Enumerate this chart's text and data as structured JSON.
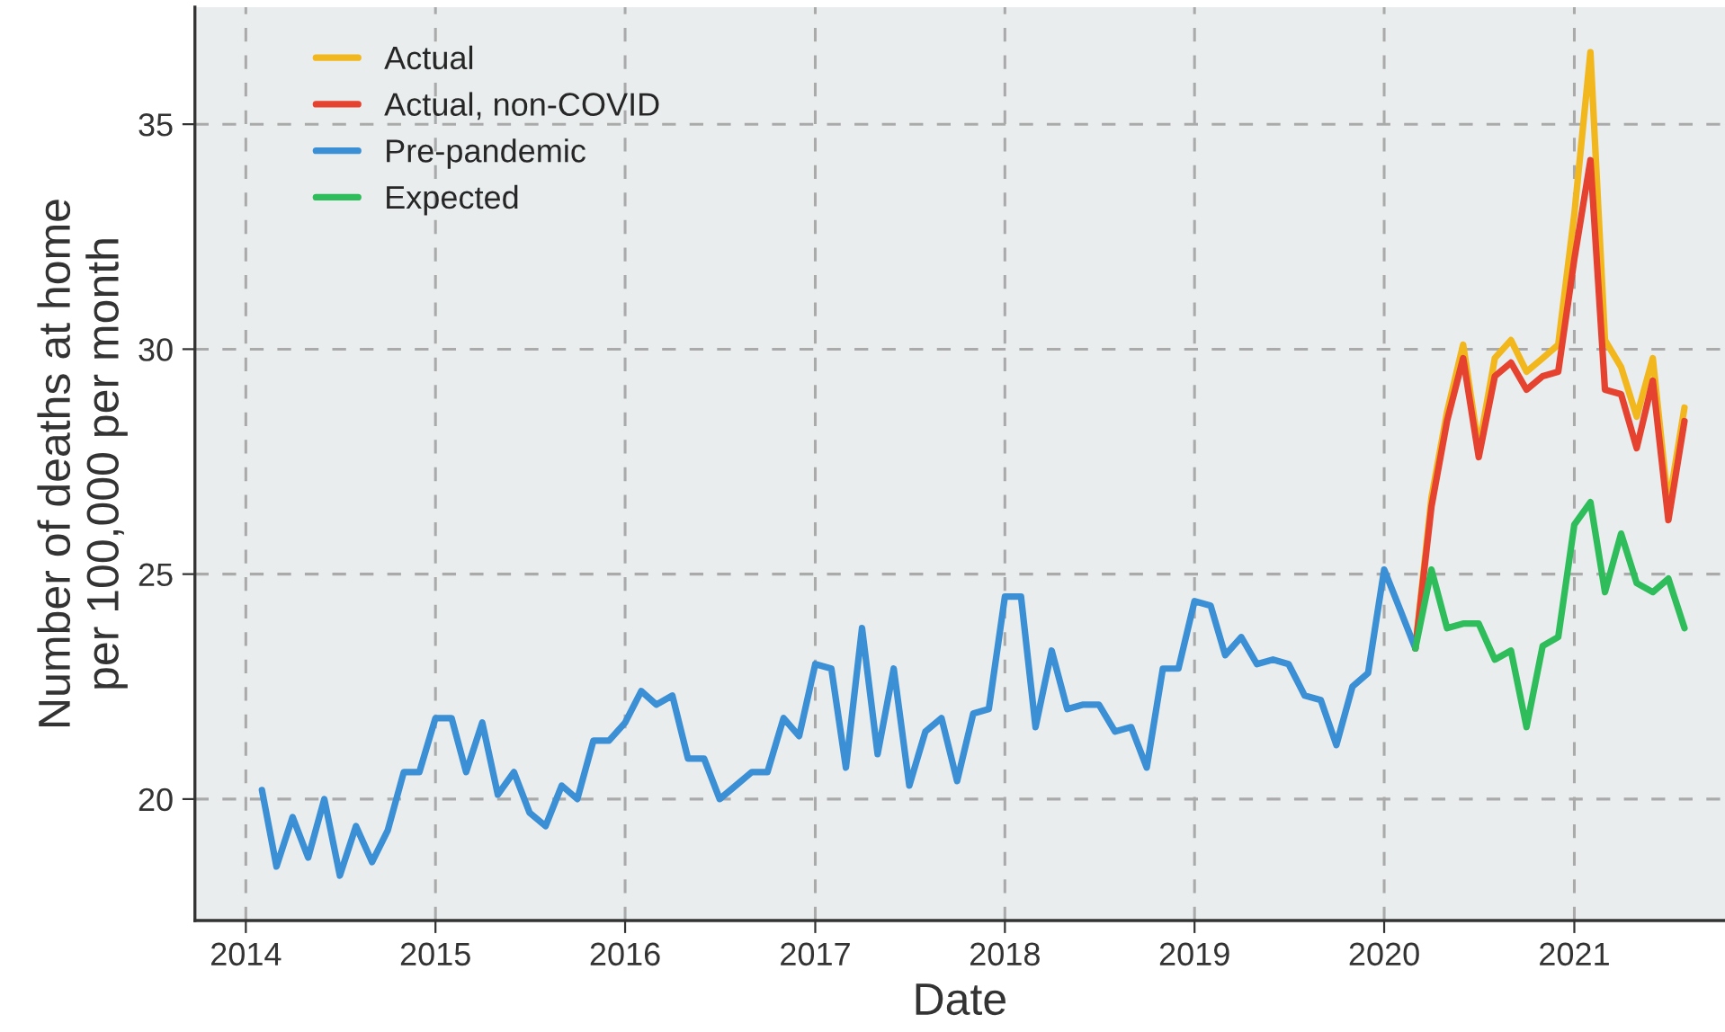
{
  "chart_data": {
    "type": "line",
    "xlabel": "Date",
    "ylabel": "Number of deaths at home\nper 100,000 per month",
    "xlim": [
      "2013-09-25",
      "2021-10-18"
    ],
    "ylim": [
      17.3,
      37.6
    ],
    "xticks": [
      "2014",
      "2015",
      "2016",
      "2017",
      "2018",
      "2019",
      "2020",
      "2021"
    ],
    "yticks": [
      20,
      25,
      30,
      35
    ],
    "grid": true,
    "legend": "top left",
    "line_style": "solid",
    "marker": "none",
    "series": [
      {
        "name": "Actual",
        "color": "#f2b71c",
        "x": [
          "2020-03",
          "2020-04",
          "2020-05",
          "2020-06",
          "2020-07",
          "2020-08",
          "2020-09",
          "2020-10",
          "2020-11",
          "2020-12",
          "2021-01",
          "2021-02",
          "2021-03",
          "2021-04",
          "2021-05",
          "2021-06",
          "2021-07",
          "2021-08"
        ],
        "values": [
          23.35,
          26.7,
          28.6,
          30.1,
          27.8,
          29.8,
          30.2,
          29.5,
          29.8,
          30.1,
          33.0,
          36.6,
          30.2,
          29.6,
          28.5,
          29.8,
          26.5,
          28.7
        ]
      },
      {
        "name": "Actual, non-COVID",
        "color": "#e5432f",
        "x": [
          "2020-03",
          "2020-04",
          "2020-05",
          "2020-06",
          "2020-07",
          "2020-08",
          "2020-09",
          "2020-10",
          "2020-11",
          "2020-12",
          "2021-01",
          "2021-02",
          "2021-03",
          "2021-04",
          "2021-05",
          "2021-06",
          "2021-07",
          "2021-08"
        ],
        "values": [
          23.35,
          26.5,
          28.4,
          29.8,
          27.6,
          29.4,
          29.7,
          29.1,
          29.4,
          29.5,
          32.0,
          34.2,
          29.1,
          29.0,
          27.8,
          29.3,
          26.2,
          28.4
        ]
      },
      {
        "name": "Pre-pandemic",
        "color": "#3b8fd5",
        "x": [
          "2014-02",
          "2014-03",
          "2014-04",
          "2014-05",
          "2014-06",
          "2014-07",
          "2014-08",
          "2014-09",
          "2014-10",
          "2014-11",
          "2014-12",
          "2015-01",
          "2015-02",
          "2015-03",
          "2015-04",
          "2015-05",
          "2015-06",
          "2015-07",
          "2015-08",
          "2015-09",
          "2015-10",
          "2015-11",
          "2015-12",
          "2016-01",
          "2016-02",
          "2016-03",
          "2016-04",
          "2016-05",
          "2016-06",
          "2016-07",
          "2016-08",
          "2016-09",
          "2016-10",
          "2016-11",
          "2016-12",
          "2017-01",
          "2017-02",
          "2017-03",
          "2017-04",
          "2017-05",
          "2017-06",
          "2017-07",
          "2017-08",
          "2017-09",
          "2017-10",
          "2017-11",
          "2017-12",
          "2018-01",
          "2018-02",
          "2018-03",
          "2018-04",
          "2018-05",
          "2018-06",
          "2018-07",
          "2018-08",
          "2018-09",
          "2018-10",
          "2018-11",
          "2018-12",
          "2019-01",
          "2019-02",
          "2019-03",
          "2019-04",
          "2019-05",
          "2019-06",
          "2019-07",
          "2019-08",
          "2019-09",
          "2019-10",
          "2019-11",
          "2019-12",
          "2020-01",
          "2020-02",
          "2020-03"
        ],
        "values": [
          20.2,
          18.5,
          19.6,
          18.7,
          20.0,
          18.3,
          19.4,
          18.6,
          19.3,
          20.6,
          20.6,
          21.8,
          21.8,
          20.6,
          21.7,
          20.1,
          20.6,
          19.7,
          19.4,
          20.3,
          20.0,
          21.3,
          21.3,
          21.7,
          22.4,
          22.1,
          22.3,
          20.9,
          20.9,
          20.0,
          20.3,
          20.6,
          20.6,
          21.8,
          21.4,
          23.0,
          22.9,
          20.7,
          23.8,
          21.0,
          22.9,
          20.3,
          21.5,
          21.8,
          20.4,
          21.9,
          22.0,
          24.5,
          24.5,
          21.6,
          23.3,
          22.0,
          22.1,
          22.1,
          21.5,
          21.6,
          20.7,
          22.9,
          22.9,
          24.4,
          24.3,
          23.2,
          23.6,
          23.0,
          23.1,
          23.0,
          22.3,
          22.2,
          21.2,
          22.5,
          22.8,
          25.1,
          24.2,
          23.35
        ]
      },
      {
        "name": "Expected",
        "color": "#2fbd5b",
        "x": [
          "2020-03",
          "2020-04",
          "2020-05",
          "2020-06",
          "2020-07",
          "2020-08",
          "2020-09",
          "2020-10",
          "2020-11",
          "2020-12",
          "2021-01",
          "2021-02",
          "2021-03",
          "2021-04",
          "2021-05",
          "2021-06",
          "2021-07",
          "2021-08"
        ],
        "values": [
          23.35,
          25.1,
          23.8,
          23.9,
          23.9,
          23.1,
          23.3,
          21.6,
          23.4,
          23.6,
          26.1,
          26.6,
          24.6,
          25.9,
          24.8,
          24.6,
          24.9,
          23.8
        ]
      }
    ]
  }
}
